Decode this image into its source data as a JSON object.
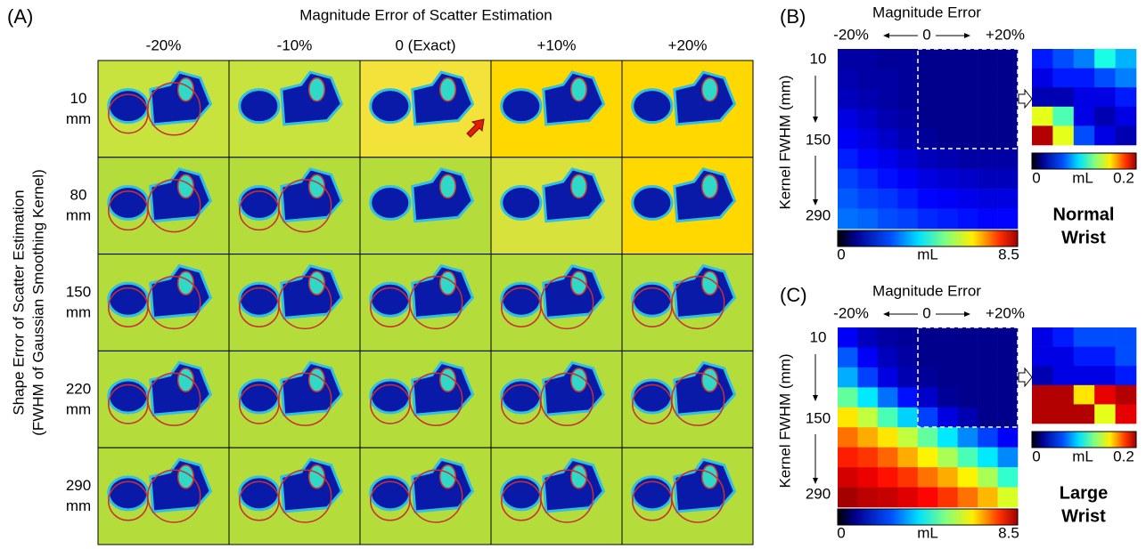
{
  "panel_a": {
    "label": "(A)",
    "title": "Magnitude Error of Scatter Estimation",
    "columns": [
      "-20%",
      "-10%",
      "0 (Exact)",
      "+10%",
      "+20%"
    ],
    "rows": [
      [
        "10",
        "mm"
      ],
      [
        "80",
        "mm"
      ],
      [
        "150",
        "mm"
      ],
      [
        "220",
        "mm"
      ],
      [
        "290",
        "mm"
      ]
    ],
    "y_title": [
      "Shape Error of Scatter Estimation",
      "(FWHM of Gaussian Smoothing Kernel)"
    ]
  },
  "panel_b": {
    "label": "(B)",
    "x_title": "Magnitude Error",
    "x_labels": [
      "-20%",
      "0",
      "+20%"
    ],
    "y_title": "Kernel FWHM (mm)",
    "y_labels": [
      "10",
      "150",
      "290"
    ],
    "values": [
      [
        0.3,
        0.3,
        0.2,
        0.2,
        0.1,
        0.1,
        0.1,
        0.1,
        0.1
      ],
      [
        0.4,
        0.3,
        0.3,
        0.2,
        0.1,
        0.1,
        0.1,
        0.1,
        0.1
      ],
      [
        0.5,
        0.4,
        0.3,
        0.2,
        0.1,
        0.1,
        0.1,
        0.1,
        0.1
      ],
      [
        0.8,
        0.6,
        0.4,
        0.3,
        0.1,
        0.1,
        0.1,
        0.1,
        0.1
      ],
      [
        1.0,
        0.8,
        0.6,
        0.4,
        0.2,
        0.1,
        0.1,
        0.1,
        0.1
      ],
      [
        1.3,
        1.1,
        0.9,
        0.7,
        0.5,
        0.4,
        0.3,
        0.3,
        0.3
      ],
      [
        1.6,
        1.4,
        1.2,
        1.0,
        0.8,
        0.7,
        0.6,
        0.5,
        0.5
      ],
      [
        1.8,
        1.6,
        1.5,
        1.3,
        1.1,
        1.0,
        0.9,
        0.8,
        0.8
      ],
      [
        2.0,
        1.9,
        1.7,
        1.6,
        1.4,
        1.3,
        1.2,
        1.1,
        1.1
      ]
    ],
    "clim": [
      0,
      8.5
    ],
    "unit": "mL",
    "inset": {
      "values": [
        [
          0.03,
          0.04,
          0.05,
          0.08,
          0.06
        ],
        [
          0.02,
          0.03,
          0.03,
          0.04,
          0.05
        ],
        [
          0.01,
          0.01,
          0.02,
          0.02,
          0.03
        ],
        [
          0.12,
          0.09,
          0.02,
          0.01,
          0.02
        ],
        [
          0.19,
          0.12,
          0.04,
          0.02,
          0.01
        ]
      ],
      "clim": [
        0,
        0.2
      ],
      "unit": "mL"
    },
    "caption": [
      "Normal",
      "Wrist"
    ]
  },
  "panel_c": {
    "label": "(C)",
    "x_title": "Magnitude Error",
    "x_labels": [
      "-20%",
      "0",
      "+20%"
    ],
    "y_title": "Kernel FWHM (mm)",
    "y_labels": [
      "10",
      "150",
      "290"
    ],
    "values": [
      [
        1.0,
        0.5,
        0.3,
        0.2,
        0.1,
        0.1,
        0.1,
        0.1,
        0.1
      ],
      [
        1.8,
        1.0,
        0.5,
        0.3,
        0.1,
        0.1,
        0.1,
        0.1,
        0.1
      ],
      [
        2.5,
        1.6,
        0.8,
        0.4,
        0.2,
        0.1,
        0.1,
        0.1,
        0.1
      ],
      [
        4.0,
        3.0,
        2.0,
        1.2,
        0.6,
        0.2,
        0.1,
        0.1,
        0.1
      ],
      [
        5.5,
        4.8,
        3.8,
        2.8,
        1.6,
        0.8,
        0.4,
        0.1,
        0.1
      ],
      [
        6.5,
        6.0,
        5.5,
        4.8,
        4.0,
        3.0,
        2.2,
        1.6,
        1.0
      ],
      [
        7.2,
        7.0,
        6.6,
        6.0,
        5.4,
        4.6,
        3.8,
        3.0,
        2.2
      ],
      [
        7.8,
        7.6,
        7.3,
        7.0,
        6.5,
        6.0,
        5.4,
        4.6,
        3.6
      ],
      [
        8.2,
        8.0,
        7.9,
        7.7,
        7.4,
        7.0,
        6.5,
        5.9,
        5.0
      ]
    ],
    "clim": [
      0,
      8.5
    ],
    "unit": "mL",
    "inset": {
      "values": [
        [
          0.02,
          0.03,
          0.04,
          0.04,
          0.04
        ],
        [
          0.02,
          0.02,
          0.03,
          0.03,
          0.04
        ],
        [
          0.01,
          0.02,
          0.02,
          0.02,
          0.03
        ],
        [
          0.19,
          0.19,
          0.13,
          0.18,
          0.19
        ],
        [
          0.19,
          0.19,
          0.19,
          0.12,
          0.18
        ]
      ],
      "clim": [
        0,
        0.2
      ],
      "unit": "mL"
    },
    "caption": [
      "Large",
      "Wrist"
    ]
  }
}
